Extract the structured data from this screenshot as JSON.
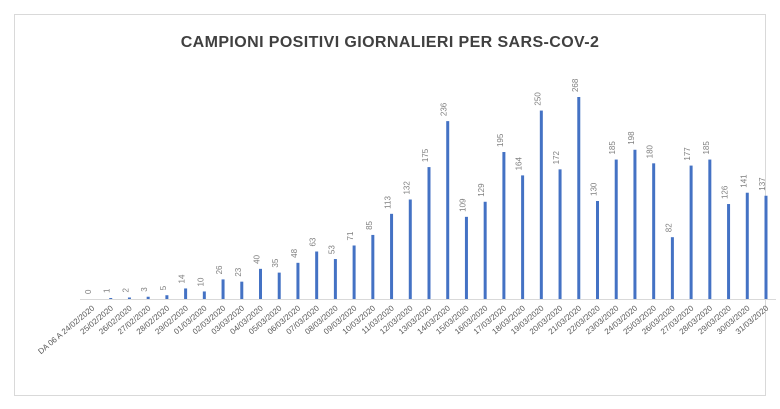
{
  "chart_data": {
    "type": "bar",
    "title": "CAMPIONI POSITIVI GIORNALIERI PER SARS-COV-2",
    "xlabel": "",
    "ylabel": "",
    "ylim": [
      0,
      268
    ],
    "grid": false,
    "categories": [
      "DA 06 A 24/02/2020",
      "25/02/2020",
      "26/02/2020",
      "27/02/2020",
      "28/02/2020",
      "29/02/2020",
      "01/03/2020",
      "02/03/2020",
      "03/03/2020",
      "04/03/2020",
      "05/03/2020",
      "06/03/2020",
      "07/03/2020",
      "08/03/2020",
      "09/03/2020",
      "10/03/2020",
      "11/03/2020",
      "12/03/2020",
      "13/03/2020",
      "14/03/2020",
      "15/03/2020",
      "16/03/2020",
      "17/03/2020",
      "18/03/2020",
      "19/03/2020",
      "20/03/2020",
      "21/03/2020",
      "22/03/2020",
      "23/03/2020",
      "24/03/2020",
      "25/03/2020",
      "26/03/2020",
      "27/03/2020",
      "28/03/2020",
      "29/03/2020",
      "30/03/2020",
      "31/03/2020"
    ],
    "values": [
      0,
      1,
      2,
      3,
      5,
      14,
      10,
      26,
      23,
      40,
      35,
      48,
      63,
      53,
      71,
      85,
      113,
      132,
      175,
      236,
      109,
      129,
      195,
      164,
      250,
      172,
      268,
      130,
      185,
      198,
      180,
      82,
      177,
      185,
      126,
      141,
      137
    ],
    "bar_color": "#4472c4",
    "label_color": "#7f7f7f"
  }
}
